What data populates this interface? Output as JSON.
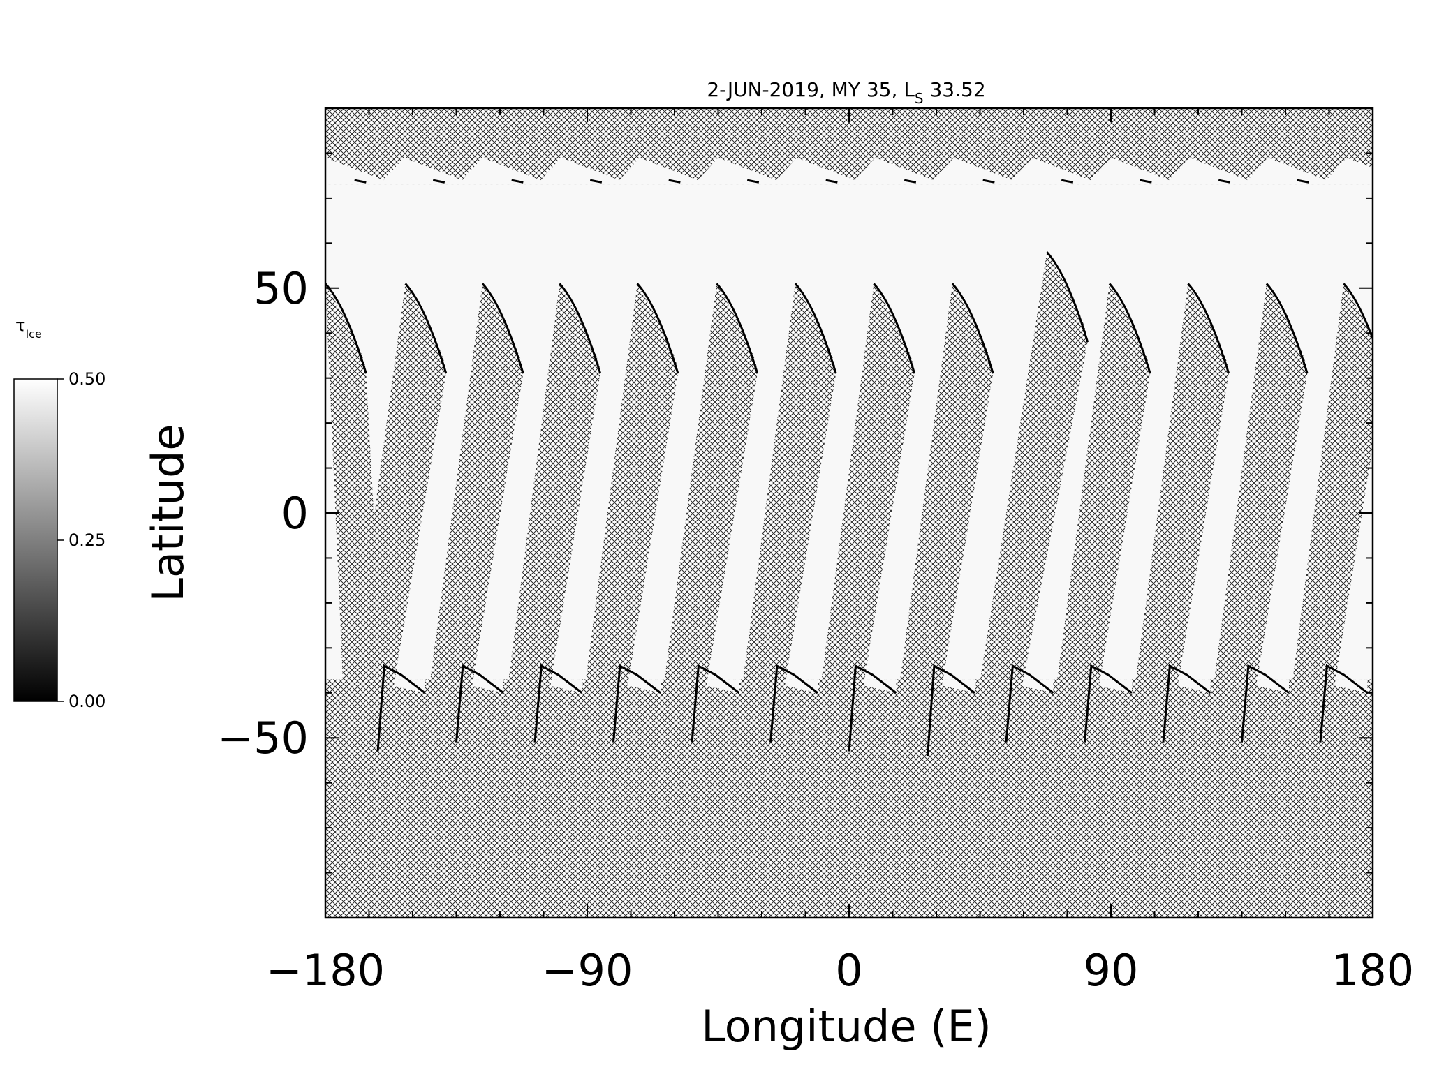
{
  "chart_data": {
    "type": "heatmap",
    "title": "2-JUN-2019, MY 35,  L",
    "title_subscript": "S",
    "title_suffix": " 33.52",
    "xlabel": "Longitude (E)",
    "ylabel": "Latitude",
    "xlim": [
      -180,
      180
    ],
    "ylim": [
      -90,
      90
    ],
    "x_ticks": [
      -180,
      -90,
      0,
      90,
      180
    ],
    "x_tick_labels": [
      "−180",
      "−90",
      "0",
      "90",
      "180"
    ],
    "y_ticks": [
      -50,
      0,
      50
    ],
    "y_tick_labels": [
      "−50",
      "0",
      "50"
    ],
    "x_minor_step": 15,
    "y_minor_step": 10,
    "grid": false,
    "colorbar": {
      "label": "τ",
      "label_subscript": "Ice",
      "min": 0.0,
      "max": 0.5,
      "ticks": [
        "0.00",
        "0.25",
        "0.50"
      ],
      "colors": [
        "#000000",
        "#ffffff"
      ],
      "placement": "left"
    },
    "no_data_pattern": "crosshatch",
    "fill_color": "#f8f8f8",
    "north_cap_boundary_lat": 73,
    "southern_boundary_lat": -37,
    "swaths": [
      {
        "x0": -180.0,
        "x_top": -180.0,
        "x_bottom": -173.0,
        "width": 14,
        "lat_top": 51
      },
      {
        "x0": -153.1,
        "x_top": -152.5,
        "x_bottom": -174.0,
        "width": 14,
        "lat_top": 51
      },
      {
        "x0": -126.2,
        "x_top": -126.0,
        "x_bottom": -147.0,
        "width": 14,
        "lat_top": 51
      },
      {
        "x0": -99.2,
        "x_top": -99.5,
        "x_bottom": -120.0,
        "width": 14,
        "lat_top": 51
      },
      {
        "x0": -72.3,
        "x_top": -72.8,
        "x_bottom": -93.5,
        "width": 14,
        "lat_top": 51
      },
      {
        "x0": -45.4,
        "x_top": -45.5,
        "x_bottom": -66.5,
        "width": 14,
        "lat_top": 51
      },
      {
        "x0": -18.5,
        "x_top": -18.5,
        "x_bottom": -39.5,
        "width": 14,
        "lat_top": 51
      },
      {
        "x0": 8.5,
        "x_top": 8.5,
        "x_bottom": -12.5,
        "width": 14,
        "lat_top": 51
      },
      {
        "x0": 35.4,
        "x_top": 35.5,
        "x_bottom": 14.5,
        "width": 14,
        "lat_top": 51
      },
      {
        "x0": 62.3,
        "x_top": 68.0,
        "x_bottom": 41.5,
        "width": 14,
        "lat_top": 58
      },
      {
        "x0": 89.2,
        "x_top": 89.5,
        "x_bottom": 68.5,
        "width": 14,
        "lat_top": 51
      },
      {
        "x0": 116.2,
        "x_top": 116.5,
        "x_bottom": 95.5,
        "width": 14,
        "lat_top": 51
      },
      {
        "x0": 143.1,
        "x_top": 143.5,
        "x_bottom": 122.5,
        "width": 14,
        "lat_top": 51
      },
      {
        "x0": 170.0,
        "x_top": 170.0,
        "x_bottom": 149.5,
        "width": 14,
        "lat_top": 51
      }
    ],
    "south_teeth": [
      {
        "lon": -162,
        "lat": -53
      },
      {
        "lon": -135,
        "lat": -51
      },
      {
        "lon": -108,
        "lat": -51
      },
      {
        "lon": -81,
        "lat": -51
      },
      {
        "lon": -54,
        "lat": -51
      },
      {
        "lon": -27,
        "lat": -51
      },
      {
        "lon": 0,
        "lat": -53
      },
      {
        "lon": 27,
        "lat": -54
      },
      {
        "lon": 54,
        "lat": -51
      },
      {
        "lon": 81,
        "lat": -51
      },
      {
        "lon": 108,
        "lat": -51
      },
      {
        "lon": 135,
        "lat": -51
      },
      {
        "lon": 162,
        "lat": -51
      }
    ]
  }
}
